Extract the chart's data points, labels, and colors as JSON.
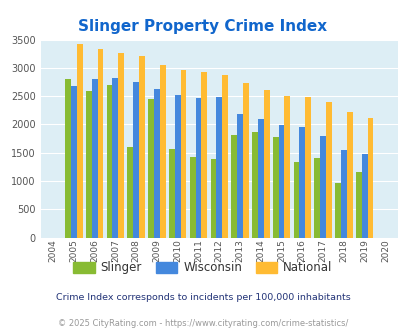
{
  "title": "Slinger Property Crime Index",
  "years": [
    2004,
    2005,
    2006,
    2007,
    2008,
    2009,
    2010,
    2011,
    2012,
    2013,
    2014,
    2015,
    2016,
    2017,
    2018,
    2019,
    2020
  ],
  "slinger": [
    null,
    2800,
    2600,
    2700,
    1600,
    2450,
    1570,
    1420,
    1390,
    1820,
    1870,
    1775,
    1340,
    1400,
    960,
    1160,
    null
  ],
  "wisconsin": [
    null,
    2680,
    2810,
    2830,
    2750,
    2620,
    2520,
    2460,
    2480,
    2190,
    2090,
    1990,
    1960,
    1800,
    1550,
    1470,
    null
  ],
  "national": [
    null,
    3420,
    3340,
    3270,
    3210,
    3050,
    2960,
    2920,
    2870,
    2730,
    2610,
    2510,
    2480,
    2390,
    2220,
    2110,
    null
  ],
  "slinger_color": "#88bb33",
  "wisconsin_color": "#4488dd",
  "national_color": "#ffbb33",
  "bg_color": "#ddeef5",
  "grid_color": "#ffffff",
  "title_color": "#1166cc",
  "ylabel_max": 3500,
  "ylabel_min": 0,
  "subtitle": "Crime Index corresponds to incidents per 100,000 inhabitants",
  "footer": "© 2025 CityRating.com - https://www.cityrating.com/crime-statistics/",
  "subtitle_color": "#223377",
  "footer_color": "#999999",
  "legend_label_color": "#333333"
}
